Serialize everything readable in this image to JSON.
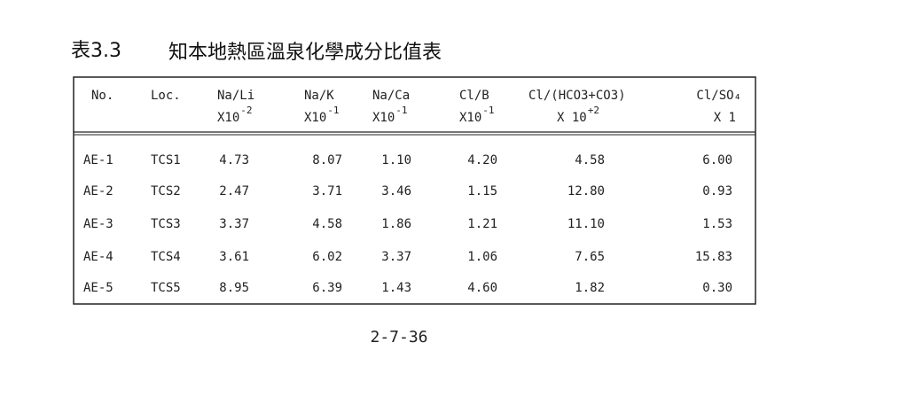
{
  "title": {
    "number": "表3.3",
    "text": "知本地熱區溫泉化學成分比值表"
  },
  "table": {
    "headers": [
      {
        "name": "No."
      },
      {
        "name": "Loc."
      },
      {
        "name": "Na/Li",
        "scale": "X10",
        "exp": "-2"
      },
      {
        "name": "Na/K",
        "scale": "X10",
        "exp": "-1"
      },
      {
        "name": "Na/Ca",
        "scale": "X10",
        "exp": "-1"
      },
      {
        "name": "Cl/B",
        "scale": "X10",
        "exp": "-1"
      },
      {
        "name": "Cl/(HCO3+CO3)",
        "scale": "X 10",
        "exp": "+2"
      },
      {
        "name": "Cl/SO₄",
        "scale": "X 1"
      }
    ],
    "rows": [
      [
        "AE-1",
        "TCS1",
        "4.73",
        "8.07",
        "1.10",
        "4.20",
        "4.58",
        "6.00"
      ],
      [
        "AE-2",
        "TCS2",
        "2.47",
        "3.71",
        "3.46",
        "1.15",
        "12.80",
        "0.93"
      ],
      [
        "AE-3",
        "TCS3",
        "3.37",
        "4.58",
        "1.86",
        "1.21",
        "11.10",
        "1.53"
      ],
      [
        "AE-4",
        "TCS4",
        "3.61",
        "6.02",
        "3.37",
        "1.06",
        "7.65",
        "15.83"
      ],
      [
        "AE-5",
        "TCS5",
        "8.95",
        "6.39",
        "1.43",
        "4.60",
        "1.82",
        "0.30"
      ]
    ]
  },
  "footer": {
    "page": "2-7-36"
  }
}
